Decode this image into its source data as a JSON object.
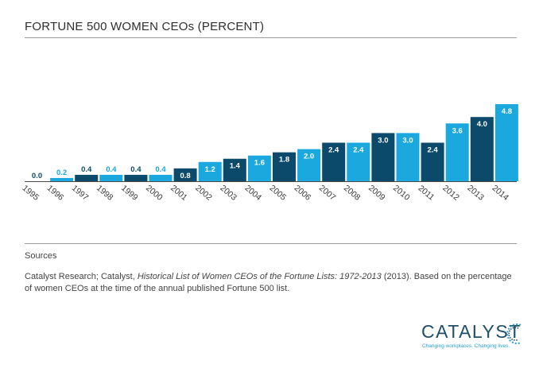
{
  "title": "FORTUNE 500 WOMEN CEOs (PERCENT)",
  "sources": {
    "heading": "Sources",
    "text_before": "Catalyst Research; Catalyst, ",
    "text_italic": "Historical List of Women CEOs of the Fortune Lists: 1972-2013",
    "text_after": " (2013). Based on the percentage of women CEOs at the time of the annual published Fortune 500 list."
  },
  "logo": {
    "wordmark": "CATALYST",
    "tagline": "Changing workplaces. Changing lives."
  },
  "colors": {
    "light": "#1ba8df",
    "dark": "#0c4a6b",
    "rule": "#9a9a9a"
  },
  "chart_data": {
    "type": "bar",
    "title": "FORTUNE 500 WOMEN CEOs (PERCENT)",
    "categories": [
      "1995",
      "1996",
      "1997",
      "1998",
      "1999",
      "2000",
      "2001",
      "2002",
      "2003",
      "2004",
      "2005",
      "2006",
      "2007",
      "2008",
      "2009",
      "2010",
      "2011",
      "2012",
      "2013",
      "2014"
    ],
    "values": [
      0.0,
      0.2,
      0.4,
      0.4,
      0.4,
      0.4,
      0.8,
      1.2,
      1.4,
      1.6,
      1.8,
      2.0,
      2.4,
      2.4,
      3.0,
      3.0,
      2.4,
      3.6,
      4.0,
      4.8
    ],
    "value_labels": [
      "0.0",
      "0.2",
      "0.4",
      "0.4",
      "0.4",
      "0.4",
      "0.8",
      "1.2",
      "1.4",
      "1.6",
      "1.8",
      "2.0",
      "2.4",
      "2.4",
      "3.0",
      "3.0",
      "2.4",
      "3.6",
      "4.0",
      "4.8"
    ],
    "bar_colors": [
      "light",
      "light",
      "dark",
      "light",
      "dark",
      "light",
      "dark",
      "light",
      "dark",
      "light",
      "dark",
      "light",
      "dark",
      "light",
      "dark",
      "light",
      "dark",
      "light",
      "dark",
      "light"
    ],
    "xlabel": "",
    "ylabel": "",
    "ylim": [
      0,
      5
    ],
    "grid": false,
    "legend": "none"
  }
}
